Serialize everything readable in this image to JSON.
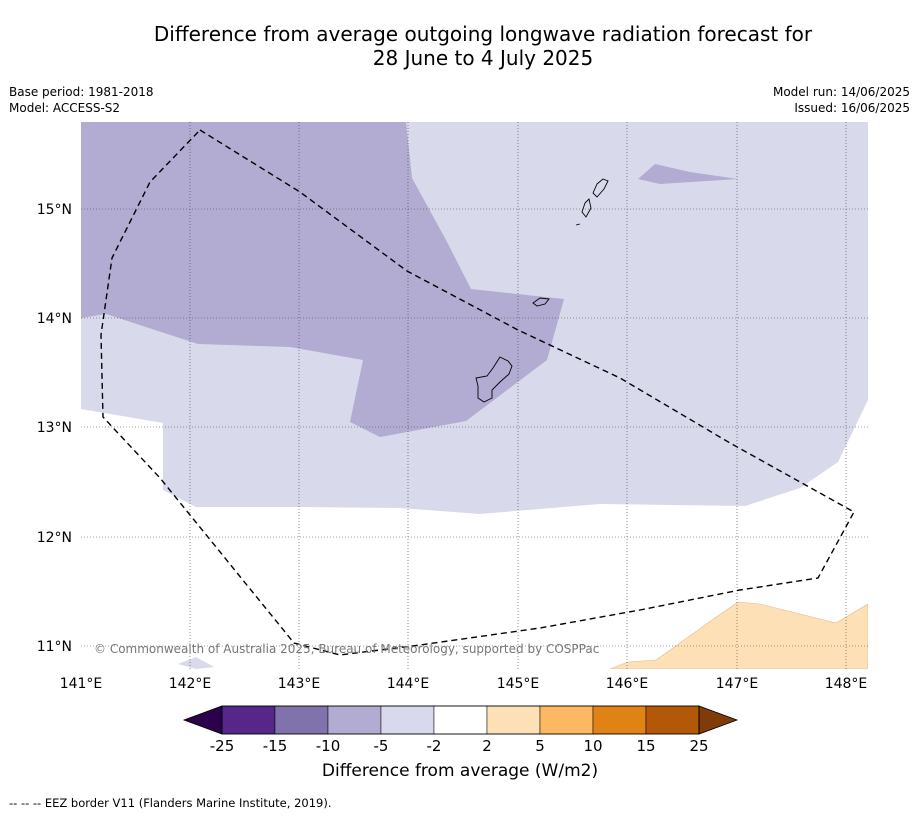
{
  "header": {
    "title_line1": "Difference from average outgoing longwave radiation forecast for",
    "title_line2": "28 June to 4 July 2025",
    "base_period": "Base period: 1981-2018",
    "model": "Model: ACCESS-S2",
    "model_run": "Model run: 14/06/2025",
    "issued": "Issued: 16/06/2025"
  },
  "map": {
    "lon_labels": [
      "141°E",
      "142°E",
      "143°E",
      "144°E",
      "145°E",
      "146°E",
      "147°E",
      "148°E"
    ],
    "lat_labels": [
      "15°N",
      "14°N",
      "13°N",
      "12°N",
      "11°N"
    ],
    "copyright": "© Commonwealth of Australia 2025, Bureau of Meteorology, supported by COSPPac"
  },
  "colorbar": {
    "labels": [
      "-25",
      "-15",
      "-10",
      "-5",
      "-2",
      "2",
      "5",
      "10",
      "15",
      "25"
    ],
    "colors": [
      "#2d004b",
      "#542788",
      "#8073ac",
      "#b2abd2",
      "#d8daeb",
      "#ffffff",
      "#fee0b6",
      "#fdb863",
      "#e08214",
      "#b35806",
      "#7f3b08"
    ],
    "title": "Difference from average (W/m2)"
  },
  "footnote": "--  --  -- EEZ border V11 (Flanders Marine Institute, 2019)."
}
